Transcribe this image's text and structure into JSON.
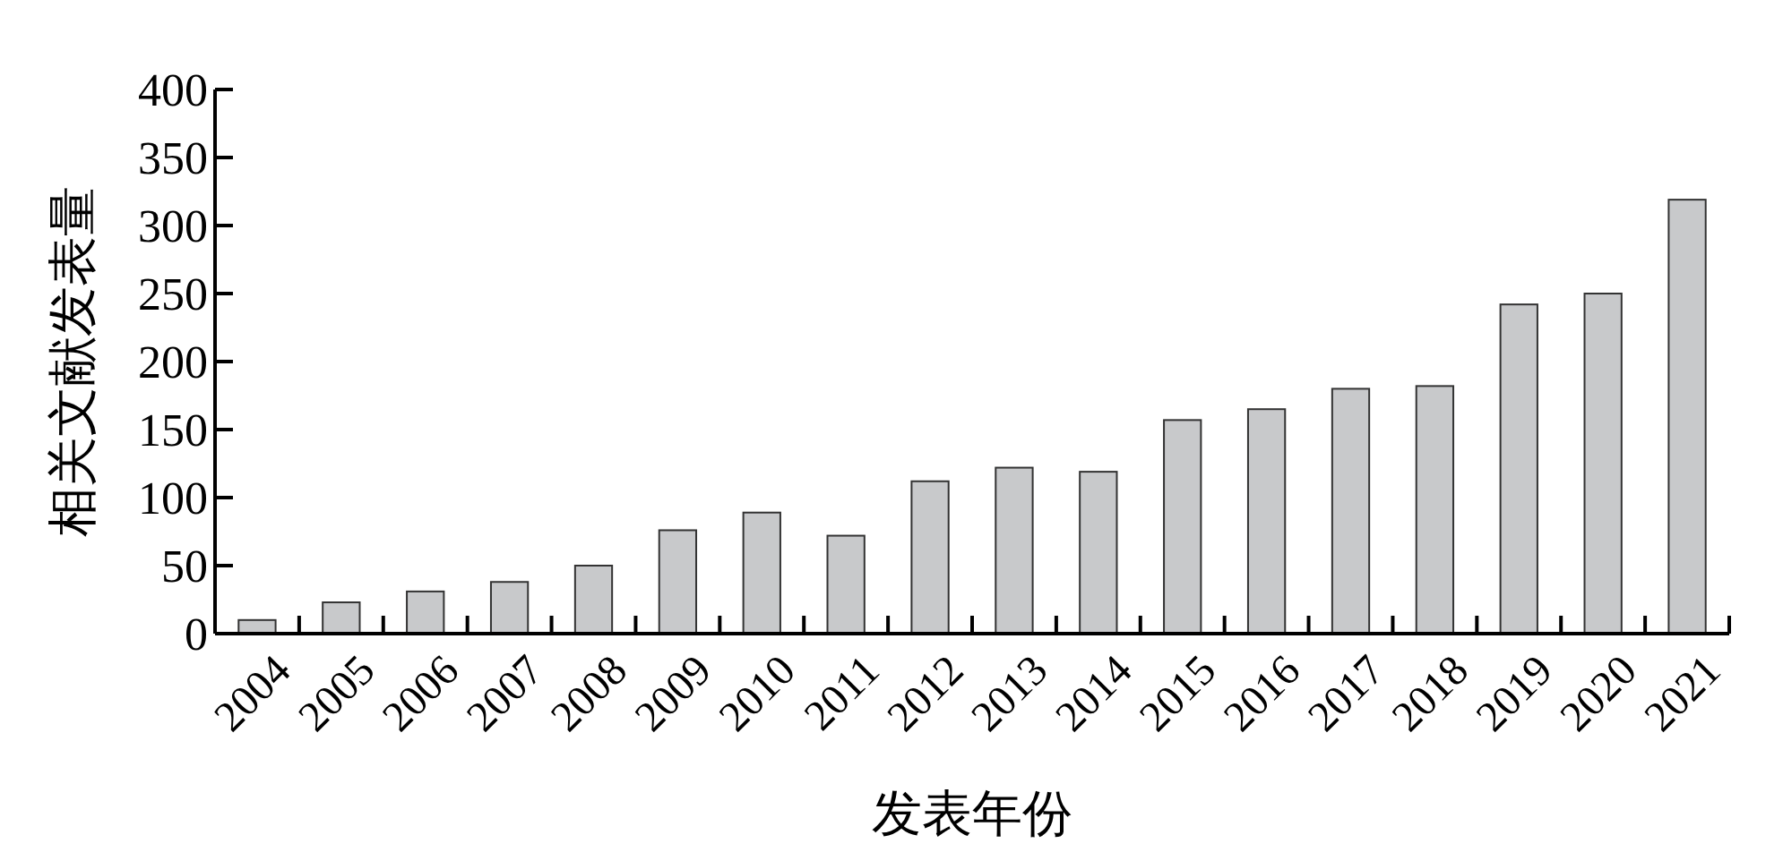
{
  "chart_data": {
    "type": "bar",
    "xlabel": "发表年份",
    "ylabel": "相关文献发表量",
    "categories": [
      "2004",
      "2005",
      "2006",
      "2007",
      "2008",
      "2009",
      "2010",
      "2011",
      "2012",
      "2013",
      "2014",
      "2015",
      "2016",
      "2017",
      "2018",
      "2019",
      "2020",
      "2021"
    ],
    "values": [
      10,
      23,
      31,
      38,
      50,
      76,
      89,
      72,
      112,
      122,
      119,
      157,
      165,
      180,
      182,
      242,
      250,
      319
    ],
    "color": "#c8c9cb",
    "ylim": [
      0,
      400
    ],
    "yticks": [
      0,
      50,
      100,
      150,
      200,
      250,
      300,
      350,
      400
    ],
    "grid": false
  }
}
